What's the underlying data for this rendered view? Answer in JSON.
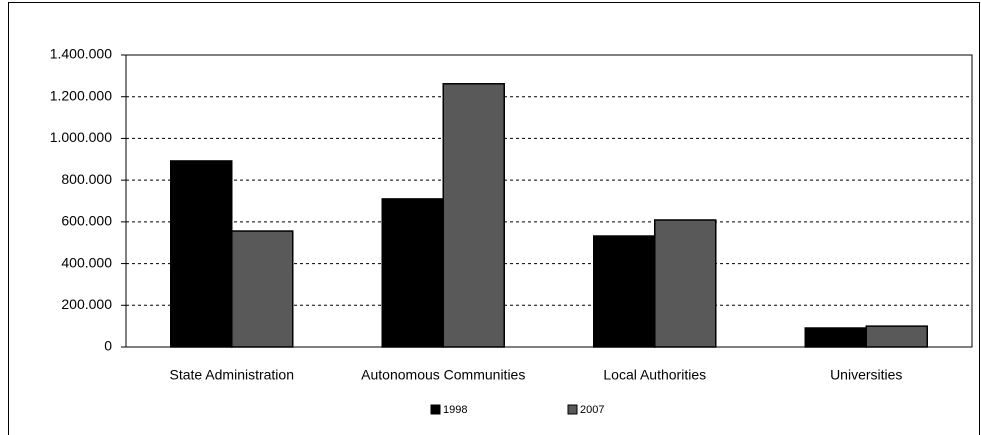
{
  "chart_data": {
    "type": "bar",
    "categories": [
      "State Administration",
      "Autonomous Communities",
      "Local Authorities",
      "Universities"
    ],
    "series": [
      {
        "name": "1998",
        "color": "#000000",
        "values": [
          892000,
          710000,
          532000,
          91000
        ]
      },
      {
        "name": "2007",
        "color": "#595959",
        "values": [
          556000,
          1262000,
          609000,
          100000
        ]
      }
    ],
    "ylim": [
      0,
      1400000
    ],
    "yticks": [
      0,
      {
        "value": 200000,
        "label": "200.000"
      },
      {
        "value": 400000,
        "label": "400.000"
      },
      {
        "value": 600000,
        "label": "600.000"
      },
      {
        "value": 800000,
        "label": "800.000"
      },
      {
        "value": 1000000,
        "label": "1.000.000"
      },
      {
        "value": 1200000,
        "label": "1.200.000"
      },
      {
        "value": 1400000,
        "label": "1.400.000"
      }
    ],
    "grid": true
  }
}
